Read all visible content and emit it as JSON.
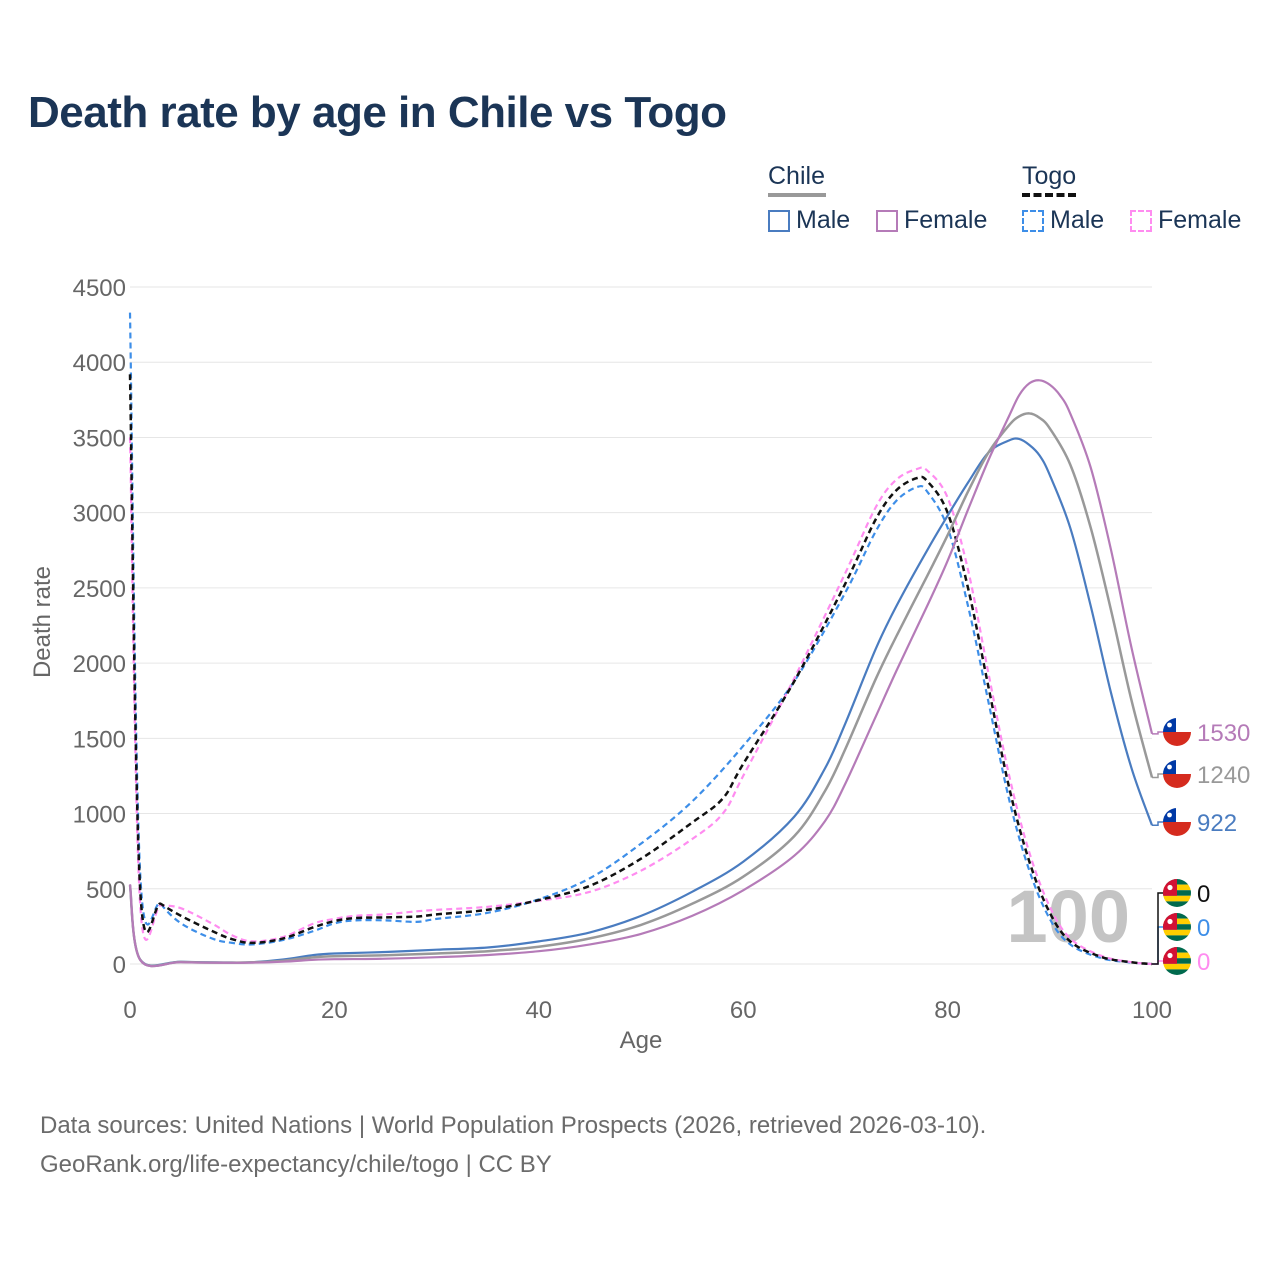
{
  "title": "Death rate by age in Chile vs Togo",
  "legend": {
    "groups": [
      {
        "name": "Chile",
        "items": [
          "Male",
          "Female"
        ]
      },
      {
        "name": "Togo",
        "items": [
          "Male",
          "Female"
        ]
      }
    ]
  },
  "colors": {
    "chile_male": "#4a7cc0",
    "chile_female": "#b57bb8",
    "chile_total": "#999999",
    "togo_male": "#3d8ee8",
    "togo_female": "#ff8cf0",
    "togo_total": "#111111",
    "grid": "#e6e6e6",
    "axis_text": "#666666"
  },
  "chart_data": {
    "type": "line",
    "xlabel": "Age",
    "ylabel": "Death rate",
    "xlim": [
      0,
      100
    ],
    "ylim": [
      0,
      4500
    ],
    "xticks": [
      0,
      20,
      40,
      60,
      80,
      100
    ],
    "yticks": [
      0,
      500,
      1000,
      1500,
      2000,
      2500,
      3000,
      3500,
      4000,
      4500
    ],
    "age_marker": "100",
    "series": [
      {
        "key": "togo_male",
        "name": "Togo Male",
        "dashed": true,
        "points": [
          [
            0,
            4330
          ],
          [
            1,
            600
          ],
          [
            3,
            400
          ],
          [
            5,
            270
          ],
          [
            8,
            170
          ],
          [
            10,
            140
          ],
          [
            12,
            130
          ],
          [
            15,
            160
          ],
          [
            18,
            220
          ],
          [
            20,
            270
          ],
          [
            22,
            290
          ],
          [
            25,
            290
          ],
          [
            28,
            280
          ],
          [
            30,
            300
          ],
          [
            35,
            340
          ],
          [
            40,
            430
          ],
          [
            45,
            570
          ],
          [
            50,
            800
          ],
          [
            55,
            1080
          ],
          [
            60,
            1450
          ],
          [
            65,
            1880
          ],
          [
            70,
            2470
          ],
          [
            73,
            2880
          ],
          [
            75,
            3080
          ],
          [
            77,
            3170
          ],
          [
            78,
            3140
          ],
          [
            80,
            2900
          ],
          [
            82,
            2380
          ],
          [
            84,
            1740
          ],
          [
            86,
            1100
          ],
          [
            88,
            620
          ],
          [
            90,
            300
          ],
          [
            92,
            130
          ],
          [
            95,
            40
          ],
          [
            98,
            10
          ],
          [
            100,
            0
          ]
        ],
        "end_label": "0"
      },
      {
        "key": "togo_female",
        "name": "Togo Female",
        "dashed": true,
        "points": [
          [
            0,
            3500
          ],
          [
            1,
            390
          ],
          [
            3,
            390
          ],
          [
            5,
            370
          ],
          [
            8,
            270
          ],
          [
            10,
            190
          ],
          [
            12,
            150
          ],
          [
            15,
            180
          ],
          [
            18,
            270
          ],
          [
            20,
            300
          ],
          [
            22,
            320
          ],
          [
            25,
            330
          ],
          [
            28,
            350
          ],
          [
            30,
            360
          ],
          [
            35,
            380
          ],
          [
            40,
            420
          ],
          [
            45,
            480
          ],
          [
            50,
            620
          ],
          [
            55,
            830
          ],
          [
            58,
            1000
          ],
          [
            60,
            1250
          ],
          [
            65,
            1900
          ],
          [
            70,
            2600
          ],
          [
            73,
            3040
          ],
          [
            75,
            3220
          ],
          [
            77,
            3290
          ],
          [
            78,
            3280
          ],
          [
            80,
            3100
          ],
          [
            82,
            2620
          ],
          [
            84,
            1930
          ],
          [
            86,
            1260
          ],
          [
            88,
            740
          ],
          [
            90,
            380
          ],
          [
            92,
            170
          ],
          [
            95,
            55
          ],
          [
            98,
            12
          ],
          [
            100,
            0
          ]
        ],
        "end_label": "0"
      },
      {
        "key": "togo_total",
        "name": "Togo",
        "dashed": true,
        "points": [
          [
            0,
            3920
          ],
          [
            1,
            490
          ],
          [
            3,
            400
          ],
          [
            5,
            320
          ],
          [
            8,
            220
          ],
          [
            10,
            165
          ],
          [
            12,
            140
          ],
          [
            15,
            170
          ],
          [
            18,
            245
          ],
          [
            20,
            285
          ],
          [
            22,
            305
          ],
          [
            25,
            310
          ],
          [
            28,
            315
          ],
          [
            30,
            330
          ],
          [
            35,
            360
          ],
          [
            40,
            425
          ],
          [
            45,
            520
          ],
          [
            50,
            700
          ],
          [
            55,
            940
          ],
          [
            58,
            1100
          ],
          [
            60,
            1330
          ],
          [
            65,
            1880
          ],
          [
            70,
            2530
          ],
          [
            73,
            2960
          ],
          [
            75,
            3150
          ],
          [
            77,
            3230
          ],
          [
            78,
            3210
          ],
          [
            80,
            3000
          ],
          [
            82,
            2500
          ],
          [
            84,
            1840
          ],
          [
            86,
            1180
          ],
          [
            88,
            680
          ],
          [
            90,
            340
          ],
          [
            92,
            150
          ],
          [
            95,
            48
          ],
          [
            98,
            11
          ],
          [
            100,
            0
          ]
        ],
        "end_label": "0"
      },
      {
        "key": "chile_male",
        "name": "Chile Male",
        "dashed": false,
        "points": [
          [
            0,
            520
          ],
          [
            1,
            30
          ],
          [
            5,
            15
          ],
          [
            10,
            10
          ],
          [
            12,
            12
          ],
          [
            15,
            30
          ],
          [
            18,
            60
          ],
          [
            20,
            70
          ],
          [
            25,
            80
          ],
          [
            30,
            95
          ],
          [
            35,
            110
          ],
          [
            40,
            150
          ],
          [
            45,
            210
          ],
          [
            50,
            320
          ],
          [
            55,
            480
          ],
          [
            60,
            680
          ],
          [
            65,
            980
          ],
          [
            68,
            1300
          ],
          [
            70,
            1600
          ],
          [
            73,
            2100
          ],
          [
            75,
            2380
          ],
          [
            78,
            2750
          ],
          [
            80,
            2980
          ],
          [
            82,
            3200
          ],
          [
            84,
            3400
          ],
          [
            86,
            3480
          ],
          [
            87,
            3490
          ],
          [
            88,
            3450
          ],
          [
            89,
            3380
          ],
          [
            90,
            3250
          ],
          [
            92,
            2900
          ],
          [
            94,
            2380
          ],
          [
            96,
            1800
          ],
          [
            98,
            1300
          ],
          [
            100,
            922
          ]
        ],
        "end_label": "922"
      },
      {
        "key": "chile_total",
        "name": "Chile",
        "dashed": false,
        "points": [
          [
            0,
            525
          ],
          [
            1,
            28
          ],
          [
            5,
            13
          ],
          [
            10,
            9
          ],
          [
            12,
            11
          ],
          [
            15,
            22
          ],
          [
            18,
            45
          ],
          [
            20,
            52
          ],
          [
            25,
            58
          ],
          [
            30,
            70
          ],
          [
            35,
            85
          ],
          [
            40,
            115
          ],
          [
            45,
            170
          ],
          [
            50,
            260
          ],
          [
            55,
            400
          ],
          [
            60,
            580
          ],
          [
            65,
            850
          ],
          [
            68,
            1150
          ],
          [
            70,
            1430
          ],
          [
            73,
            1900
          ],
          [
            75,
            2180
          ],
          [
            78,
            2580
          ],
          [
            80,
            2850
          ],
          [
            82,
            3140
          ],
          [
            84,
            3400
          ],
          [
            86,
            3580
          ],
          [
            87,
            3640
          ],
          [
            88,
            3660
          ],
          [
            89,
            3630
          ],
          [
            90,
            3560
          ],
          [
            92,
            3320
          ],
          [
            94,
            2900
          ],
          [
            96,
            2350
          ],
          [
            98,
            1750
          ],
          [
            100,
            1240
          ]
        ],
        "end_label": "1240"
      },
      {
        "key": "chile_female",
        "name": "Chile Female",
        "dashed": false,
        "points": [
          [
            0,
            530
          ],
          [
            1,
            27
          ],
          [
            5,
            12
          ],
          [
            10,
            8
          ],
          [
            12,
            9
          ],
          [
            15,
            15
          ],
          [
            18,
            28
          ],
          [
            20,
            32
          ],
          [
            25,
            35
          ],
          [
            30,
            45
          ],
          [
            35,
            60
          ],
          [
            40,
            85
          ],
          [
            45,
            130
          ],
          [
            50,
            200
          ],
          [
            55,
            320
          ],
          [
            60,
            490
          ],
          [
            65,
            720
          ],
          [
            68,
            950
          ],
          [
            70,
            1200
          ],
          [
            73,
            1650
          ],
          [
            75,
            1950
          ],
          [
            78,
            2380
          ],
          [
            80,
            2680
          ],
          [
            82,
            3020
          ],
          [
            84,
            3350
          ],
          [
            86,
            3640
          ],
          [
            87,
            3780
          ],
          [
            88,
            3860
          ],
          [
            89,
            3880
          ],
          [
            90,
            3850
          ],
          [
            91,
            3780
          ],
          [
            92,
            3660
          ],
          [
            94,
            3300
          ],
          [
            96,
            2750
          ],
          [
            98,
            2100
          ],
          [
            100,
            1530
          ]
        ],
        "end_label": "1530"
      }
    ]
  }
}
